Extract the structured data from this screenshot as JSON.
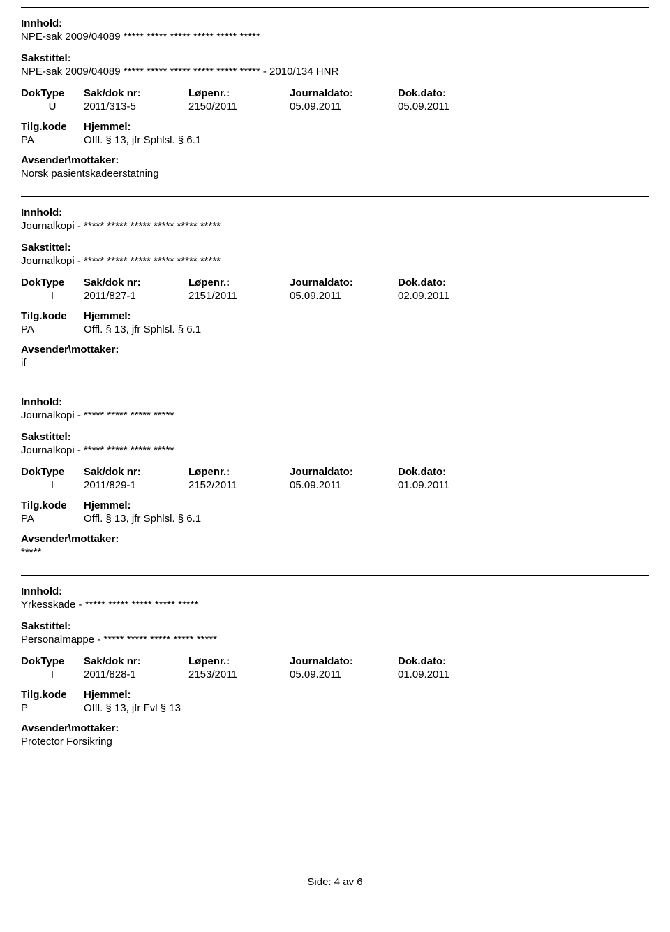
{
  "labels": {
    "innhold": "Innhold:",
    "sakstittel": "Sakstittel:",
    "doktype": "DokType",
    "sakdok": "Sak/dok nr:",
    "lopenr": "Løpenr.:",
    "journaldato": "Journaldato:",
    "dokdato": "Dok.dato:",
    "tilgkode": "Tilg.kode",
    "hjemmel": "Hjemmel:",
    "avsender": "Avsender\\mottaker:"
  },
  "entries": [
    {
      "innhold": "NPE-sak 2009/04089 ***** ***** ***** ***** ***** *****",
      "sakstittel": "NPE-sak 2009/04089 ***** ***** ***** ***** ***** ***** - 2010/134 HNR",
      "doktype": "U",
      "sakdok": "2011/313-5",
      "lopenr": "2150/2011",
      "journaldato": "05.09.2011",
      "dokdato": "05.09.2011",
      "tilgkode": "PA",
      "hjemmel": "Offl. § 13, jfr Sphlsl. § 6.1",
      "avsender": "Norsk pasientskadeerstatning"
    },
    {
      "innhold": "Journalkopi - ***** ***** ***** ***** ***** *****",
      "sakstittel": "Journalkopi - ***** ***** ***** ***** ***** *****",
      "doktype": "I",
      "sakdok": "2011/827-1",
      "lopenr": "2151/2011",
      "journaldato": "05.09.2011",
      "dokdato": "02.09.2011",
      "tilgkode": "PA",
      "hjemmel": "Offl. § 13, jfr Sphlsl. § 6.1",
      "avsender": "if"
    },
    {
      "innhold": "Journalkopi - ***** ***** ***** *****",
      "sakstittel": "Journalkopi - ***** ***** ***** *****",
      "doktype": "I",
      "sakdok": "2011/829-1",
      "lopenr": "2152/2011",
      "journaldato": "05.09.2011",
      "dokdato": "01.09.2011",
      "tilgkode": "PA",
      "hjemmel": "Offl. § 13, jfr Sphlsl. § 6.1",
      "avsender": "*****"
    },
    {
      "innhold": "Yrkesskade - ***** ***** ***** ***** *****",
      "sakstittel": "Personalmappe - ***** ***** ***** ***** *****",
      "doktype": "I",
      "sakdok": "2011/828-1",
      "lopenr": "2153/2011",
      "journaldato": "05.09.2011",
      "dokdato": "01.09.2011",
      "tilgkode": "P",
      "hjemmel": "Offl. § 13, jfr Fvl § 13",
      "avsender": "Protector Forsikring"
    }
  ],
  "footer": "Side: 4 av 6"
}
